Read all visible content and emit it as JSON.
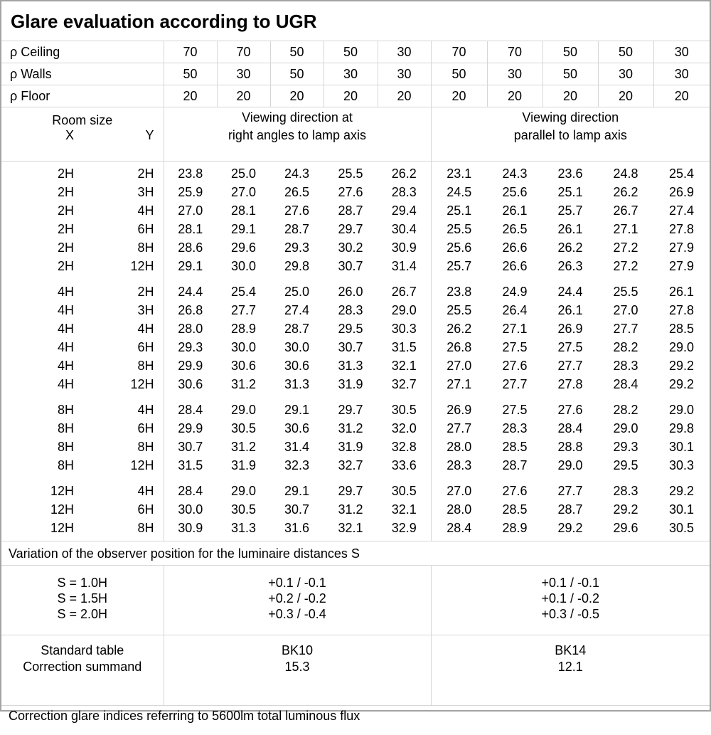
{
  "title": "Glare evaluation according to UGR",
  "colors": {
    "background": "#ffffff",
    "text": "#000000",
    "grid_line": "#d6d6d6",
    "outer_border": "#a3a3a3"
  },
  "reflectance": {
    "rows": [
      {
        "label": "ρ Ceiling",
        "values": [
          "70",
          "70",
          "50",
          "50",
          "30",
          "70",
          "70",
          "50",
          "50",
          "30"
        ]
      },
      {
        "label": "ρ Walls",
        "values": [
          "50",
          "30",
          "50",
          "30",
          "30",
          "50",
          "30",
          "50",
          "30",
          "30"
        ]
      },
      {
        "label": "ρ Floor",
        "values": [
          "20",
          "20",
          "20",
          "20",
          "20",
          "20",
          "20",
          "20",
          "20",
          "20"
        ]
      }
    ]
  },
  "header": {
    "room_size": "Room size",
    "x_label": "X",
    "y_label": "Y",
    "left_line1": "Viewing direction at",
    "left_line2": "right angles to lamp axis",
    "right_line1": "Viewing direction",
    "right_line2": "parallel to lamp axis"
  },
  "ugr_table": {
    "groups": [
      {
        "rows": [
          {
            "x": "2H",
            "y": "2H",
            "values": [
              "23.8",
              "25.0",
              "24.3",
              "25.5",
              "26.2",
              "23.1",
              "24.3",
              "23.6",
              "24.8",
              "25.4"
            ]
          },
          {
            "x": "2H",
            "y": "3H",
            "values": [
              "25.9",
              "27.0",
              "26.5",
              "27.6",
              "28.3",
              "24.5",
              "25.6",
              "25.1",
              "26.2",
              "26.9"
            ]
          },
          {
            "x": "2H",
            "y": "4H",
            "values": [
              "27.0",
              "28.1",
              "27.6",
              "28.7",
              "29.4",
              "25.1",
              "26.1",
              "25.7",
              "26.7",
              "27.4"
            ]
          },
          {
            "x": "2H",
            "y": "6H",
            "values": [
              "28.1",
              "29.1",
              "28.7",
              "29.7",
              "30.4",
              "25.5",
              "26.5",
              "26.1",
              "27.1",
              "27.8"
            ]
          },
          {
            "x": "2H",
            "y": "8H",
            "values": [
              "28.6",
              "29.6",
              "29.3",
              "30.2",
              "30.9",
              "25.6",
              "26.6",
              "26.2",
              "27.2",
              "27.9"
            ]
          },
          {
            "x": "2H",
            "y": "12H",
            "values": [
              "29.1",
              "30.0",
              "29.8",
              "30.7",
              "31.4",
              "25.7",
              "26.6",
              "26.3",
              "27.2",
              "27.9"
            ]
          }
        ]
      },
      {
        "rows": [
          {
            "x": "4H",
            "y": "2H",
            "values": [
              "24.4",
              "25.4",
              "25.0",
              "26.0",
              "26.7",
              "23.8",
              "24.9",
              "24.4",
              "25.5",
              "26.1"
            ]
          },
          {
            "x": "4H",
            "y": "3H",
            "values": [
              "26.8",
              "27.7",
              "27.4",
              "28.3",
              "29.0",
              "25.5",
              "26.4",
              "26.1",
              "27.0",
              "27.8"
            ]
          },
          {
            "x": "4H",
            "y": "4H",
            "values": [
              "28.0",
              "28.9",
              "28.7",
              "29.5",
              "30.3",
              "26.2",
              "27.1",
              "26.9",
              "27.7",
              "28.5"
            ]
          },
          {
            "x": "4H",
            "y": "6H",
            "values": [
              "29.3",
              "30.0",
              "30.0",
              "30.7",
              "31.5",
              "26.8",
              "27.5",
              "27.5",
              "28.2",
              "29.0"
            ]
          },
          {
            "x": "4H",
            "y": "8H",
            "values": [
              "29.9",
              "30.6",
              "30.6",
              "31.3",
              "32.1",
              "27.0",
              "27.6",
              "27.7",
              "28.3",
              "29.2"
            ]
          },
          {
            "x": "4H",
            "y": "12H",
            "values": [
              "30.6",
              "31.2",
              "31.3",
              "31.9",
              "32.7",
              "27.1",
              "27.7",
              "27.8",
              "28.4",
              "29.2"
            ]
          }
        ]
      },
      {
        "rows": [
          {
            "x": "8H",
            "y": "4H",
            "values": [
              "28.4",
              "29.0",
              "29.1",
              "29.7",
              "30.5",
              "26.9",
              "27.5",
              "27.6",
              "28.2",
              "29.0"
            ]
          },
          {
            "x": "8H",
            "y": "6H",
            "values": [
              "29.9",
              "30.5",
              "30.6",
              "31.2",
              "32.0",
              "27.7",
              "28.3",
              "28.4",
              "29.0",
              "29.8"
            ]
          },
          {
            "x": "8H",
            "y": "8H",
            "values": [
              "30.7",
              "31.2",
              "31.4",
              "31.9",
              "32.8",
              "28.0",
              "28.5",
              "28.8",
              "29.3",
              "30.1"
            ]
          },
          {
            "x": "8H",
            "y": "12H",
            "values": [
              "31.5",
              "31.9",
              "32.3",
              "32.7",
              "33.6",
              "28.3",
              "28.7",
              "29.0",
              "29.5",
              "30.3"
            ]
          }
        ]
      },
      {
        "rows": [
          {
            "x": "12H",
            "y": "4H",
            "values": [
              "28.4",
              "29.0",
              "29.1",
              "29.7",
              "30.5",
              "27.0",
              "27.6",
              "27.7",
              "28.3",
              "29.2"
            ]
          },
          {
            "x": "12H",
            "y": "6H",
            "values": [
              "30.0",
              "30.5",
              "30.7",
              "31.2",
              "32.1",
              "28.0",
              "28.5",
              "28.7",
              "29.2",
              "30.1"
            ]
          },
          {
            "x": "12H",
            "y": "8H",
            "values": [
              "30.9",
              "31.3",
              "31.6",
              "32.1",
              "32.9",
              "28.4",
              "28.9",
              "29.2",
              "29.6",
              "30.5"
            ]
          }
        ]
      }
    ]
  },
  "variation_note": "Variation of the observer position for the luminaire distances S",
  "s_variation": {
    "rows": [
      {
        "label": "S = 1.0H",
        "right_angles": "+0.1 / -0.1",
        "parallel": "+0.1 / -0.1"
      },
      {
        "label": "S = 1.5H",
        "right_angles": "+0.2 / -0.2",
        "parallel": "+0.1 / -0.2"
      },
      {
        "label": "S = 2.0H",
        "right_angles": "+0.3 / -0.4",
        "parallel": "+0.3 / -0.5"
      }
    ]
  },
  "standard": {
    "label_line1": "Standard table",
    "label_line2": "Correction summand",
    "table_left": "BK10",
    "summand_left": "15.3",
    "table_right": "BK14",
    "summand_right": "12.1"
  },
  "footer_note": "Correction glare indices referring to 5600lm total luminous flux"
}
